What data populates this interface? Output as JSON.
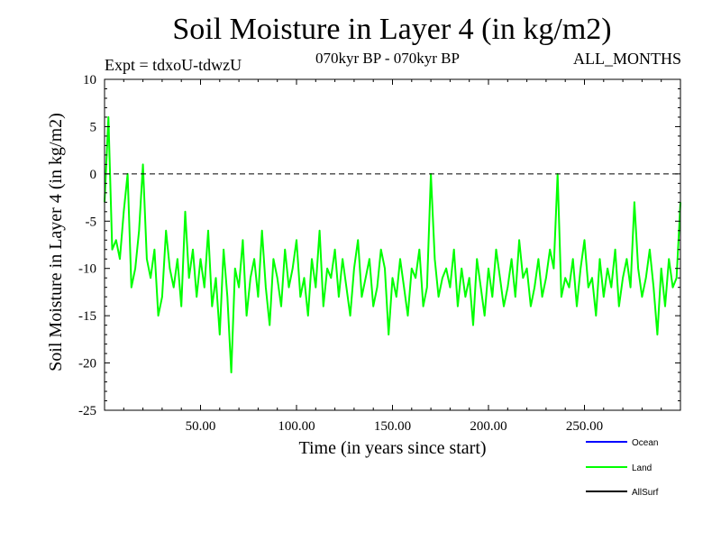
{
  "header": {
    "title": "Soil Moisture in Layer 4 (in kg/m2)",
    "experiment": "Expt = tdxoU-tdwzU",
    "period": "070kyr BP - 070kyr BP",
    "months": "ALL_MONTHS"
  },
  "chart_data": {
    "type": "line",
    "title": "Soil Moisture in Layer 4 (in kg/m2)",
    "xlabel": "Time (in years since start)",
    "ylabel": "Soil Moisture in Layer 4 (in kg/m2)",
    "xlim": [
      0,
      300
    ],
    "ylim": [
      -25,
      10
    ],
    "xticks": [
      50,
      100,
      150,
      200,
      250
    ],
    "xtick_labels": [
      "50.00",
      "100.00",
      "150.00",
      "200.00",
      "250.00"
    ],
    "yticks": [
      -25,
      -20,
      -15,
      -10,
      -5,
      0,
      5,
      10
    ],
    "ytick_labels": [
      "-25",
      "-20",
      "-15",
      "-10",
      "-5",
      "0",
      "5",
      "10"
    ],
    "reference_line": 0,
    "grid": false,
    "legend_position": "bottom-right, below plot",
    "series": [
      {
        "name": "Ocean",
        "color": "#0000ff",
        "x": [],
        "values": []
      },
      {
        "name": "Land",
        "color": "#00ff00",
        "x": [
          0,
          2,
          4,
          6,
          8,
          10,
          12,
          14,
          16,
          18,
          20,
          22,
          24,
          26,
          28,
          30,
          32,
          34,
          36,
          38,
          40,
          42,
          44,
          46,
          48,
          50,
          52,
          54,
          56,
          58,
          60,
          62,
          64,
          66,
          68,
          70,
          72,
          74,
          76,
          78,
          80,
          82,
          84,
          86,
          88,
          90,
          92,
          94,
          96,
          98,
          100,
          102,
          104,
          106,
          108,
          110,
          112,
          114,
          116,
          118,
          120,
          122,
          124,
          126,
          128,
          130,
          132,
          134,
          136,
          138,
          140,
          142,
          144,
          146,
          148,
          150,
          152,
          154,
          156,
          158,
          160,
          162,
          164,
          166,
          168,
          170,
          172,
          174,
          176,
          178,
          180,
          182,
          184,
          186,
          188,
          190,
          192,
          194,
          196,
          198,
          200,
          202,
          204,
          206,
          208,
          210,
          212,
          214,
          216,
          218,
          220,
          222,
          224,
          226,
          228,
          230,
          232,
          234,
          236,
          238,
          240,
          242,
          244,
          246,
          248,
          250,
          252,
          254,
          256,
          258,
          260,
          262,
          264,
          266,
          268,
          270,
          272,
          274,
          276,
          278,
          280,
          282,
          284,
          286,
          288,
          290,
          292,
          294,
          296,
          298,
          300
        ],
        "values": [
          -3,
          6,
          -8,
          -7,
          -9,
          -4,
          0,
          -12,
          -10,
          -6,
          1,
          -9,
          -11,
          -8,
          -15,
          -13,
          -6,
          -10,
          -12,
          -9,
          -14,
          -4,
          -11,
          -8,
          -13,
          -9,
          -12,
          -6,
          -14,
          -11,
          -17,
          -8,
          -13,
          -21,
          -10,
          -12,
          -7,
          -15,
          -11,
          -9,
          -13,
          -6,
          -12,
          -16,
          -9,
          -11,
          -14,
          -8,
          -12,
          -10,
          -7,
          -13,
          -11,
          -15,
          -9,
          -12,
          -6,
          -14,
          -10,
          -11,
          -8,
          -13,
          -9,
          -12,
          -15,
          -10,
          -7,
          -13,
          -11,
          -9,
          -14,
          -12,
          -8,
          -10,
          -17,
          -11,
          -13,
          -9,
          -12,
          -15,
          -10,
          -11,
          -8,
          -14,
          -12,
          0,
          -9,
          -13,
          -11,
          -10,
          -12,
          -8,
          -14,
          -10,
          -13,
          -11,
          -16,
          -9,
          -12,
          -15,
          -10,
          -13,
          -8,
          -11,
          -14,
          -12,
          -9,
          -13,
          -7,
          -11,
          -10,
          -14,
          -12,
          -9,
          -13,
          -11,
          -8,
          -10,
          0,
          -13,
          -11,
          -12,
          -9,
          -14,
          -10,
          -7,
          -12,
          -11,
          -15,
          -9,
          -13,
          -10,
          -12,
          -8,
          -14,
          -11,
          -9,
          -12,
          -3,
          -10,
          -13,
          -11,
          -8,
          -12,
          -17,
          -10,
          -14,
          -9,
          -12,
          -11,
          -3
        ]
      },
      {
        "name": "AllSurf",
        "color": "#000000",
        "x": [],
        "values": []
      }
    ]
  }
}
